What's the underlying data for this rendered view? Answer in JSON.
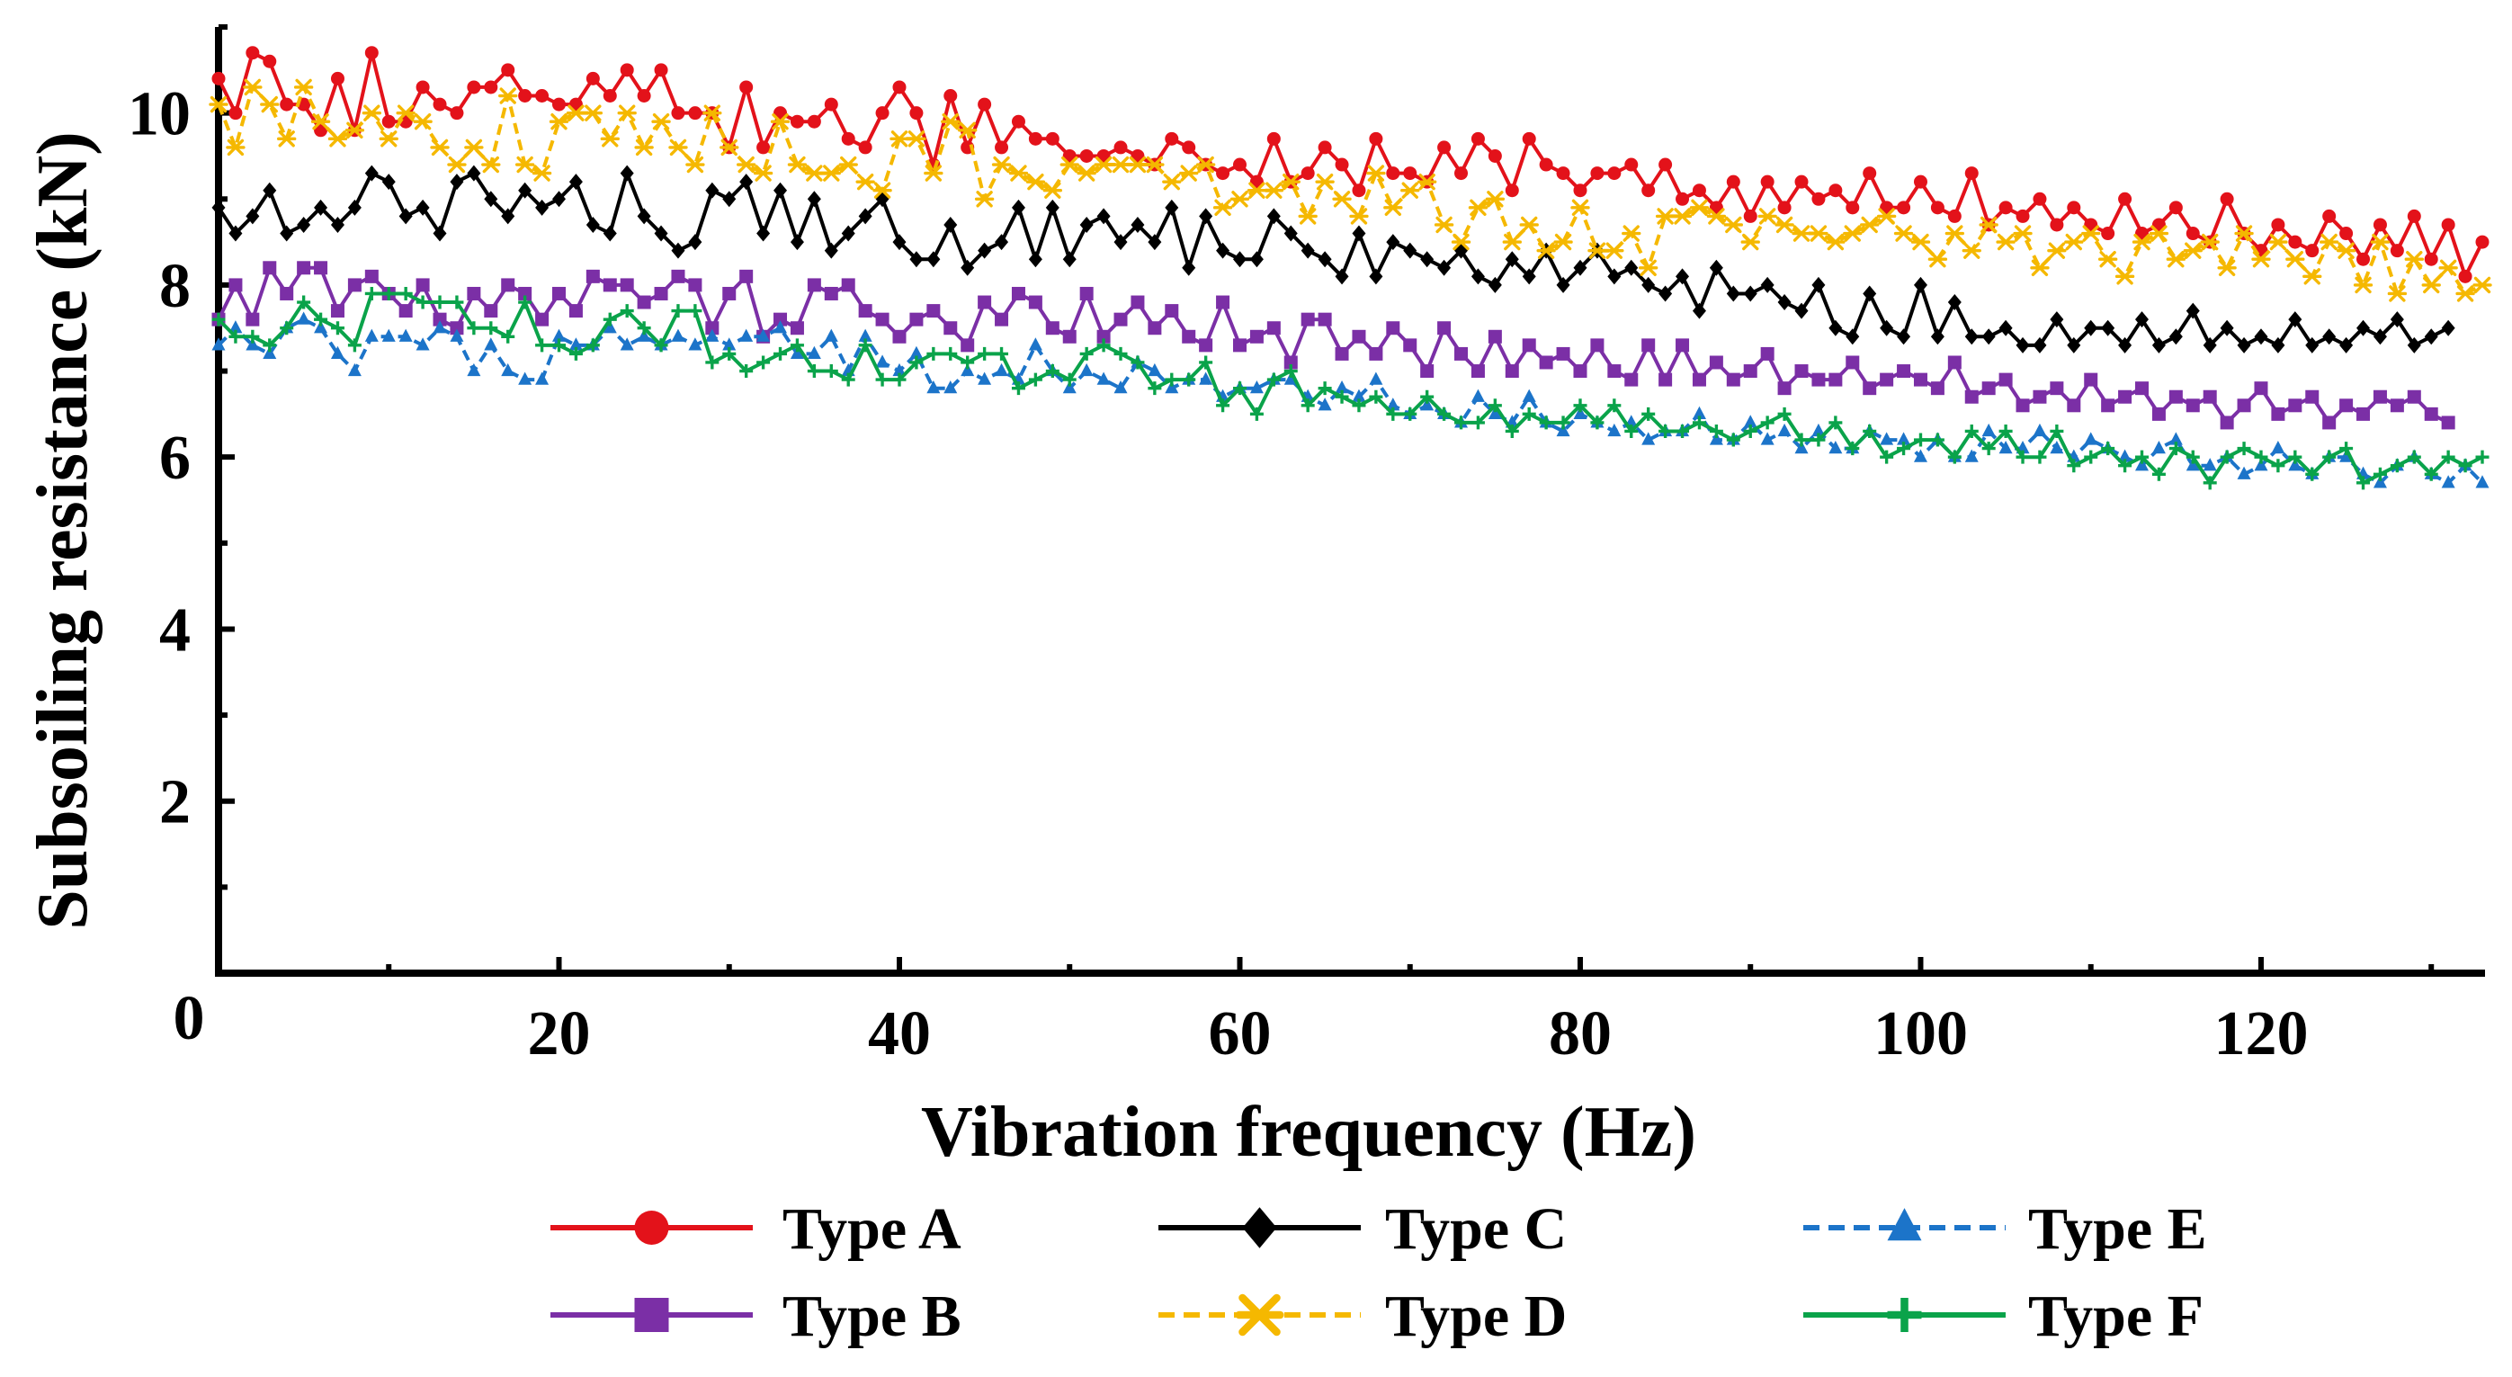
{
  "chart_data": {
    "type": "line",
    "title": "",
    "xlabel": "Vibration frequency (Hz)",
    "ylabel": "Subsoiling resistance (kN)",
    "xlim": [
      0,
      133
    ],
    "ylim": [
      0,
      11
    ],
    "xticks": [
      20,
      40,
      60,
      80,
      100,
      120
    ],
    "yticks": [
      2,
      4,
      6,
      8,
      10
    ],
    "origin_label": "0",
    "grid": false,
    "legend_position": "bottom",
    "x_start": 0,
    "x_step": 1,
    "series": [
      {
        "name": "Type A",
        "color": "#e3121a",
        "marker": "circle",
        "dash": "solid",
        "values": [
          10.4,
          10.0,
          10.7,
          10.6,
          10.1,
          10.1,
          9.8,
          10.4,
          9.8,
          10.7,
          9.9,
          9.9,
          10.3,
          10.1,
          10.0,
          10.3,
          10.3,
          10.5,
          10.2,
          10.2,
          10.1,
          10.1,
          10.4,
          10.2,
          10.5,
          10.2,
          10.5,
          10.0,
          10.0,
          10.0,
          9.6,
          10.3,
          9.6,
          10.0,
          9.9,
          9.9,
          10.1,
          9.7,
          9.6,
          10.0,
          10.3,
          10.0,
          9.4,
          10.2,
          9.6,
          10.1,
          9.6,
          9.9,
          9.7,
          9.7,
          9.5,
          9.5,
          9.5,
          9.6,
          9.5,
          9.4,
          9.7,
          9.6,
          9.4,
          9.3,
          9.4,
          9.2,
          9.7,
          9.2,
          9.3,
          9.6,
          9.4,
          9.1,
          9.7,
          9.3,
          9.3,
          9.2,
          9.6,
          9.3,
          9.7,
          9.5,
          9.1,
          9.7,
          9.4,
          9.3,
          9.1,
          9.3,
          9.3,
          9.4,
          9.1,
          9.4,
          9.0,
          9.1,
          8.9,
          9.2,
          8.8,
          9.2,
          8.9,
          9.2,
          9.0,
          9.1,
          8.9,
          9.3,
          8.9,
          8.9,
          9.2,
          8.9,
          8.8,
          9.3,
          8.7,
          8.9,
          8.8,
          9.0,
          8.7,
          8.9,
          8.7,
          8.6,
          9.0,
          8.6,
          8.7,
          8.9,
          8.6,
          8.5,
          9.0,
          8.6,
          8.4,
          8.7,
          8.5,
          8.4,
          8.8,
          8.6,
          8.3,
          8.7,
          8.4,
          8.8,
          8.3,
          8.7,
          8.1,
          8.5
        ]
      },
      {
        "name": "Type B",
        "color": "#7b2fa6",
        "marker": "square",
        "dash": "solid",
        "values": [
          7.6,
          8.0,
          7.6,
          8.2,
          7.9,
          8.2,
          8.2,
          7.7,
          8.0,
          8.1,
          7.9,
          7.7,
          8.0,
          7.6,
          7.5,
          7.9,
          7.7,
          8.0,
          7.9,
          7.6,
          7.9,
          7.7,
          8.1,
          8.0,
          8.0,
          7.8,
          7.9,
          8.1,
          8.0,
          7.5,
          7.9,
          8.1,
          7.4,
          7.6,
          7.5,
          8.0,
          7.9,
          8.0,
          7.7,
          7.6,
          7.4,
          7.6,
          7.7,
          7.5,
          7.3,
          7.8,
          7.6,
          7.9,
          7.8,
          7.5,
          7.4,
          7.9,
          7.4,
          7.6,
          7.8,
          7.5,
          7.7,
          7.4,
          7.3,
          7.8,
          7.3,
          7.4,
          7.5,
          7.1,
          7.6,
          7.6,
          7.2,
          7.4,
          7.2,
          7.5,
          7.3,
          7.0,
          7.5,
          7.2,
          7.0,
          7.4,
          7.0,
          7.3,
          7.1,
          7.2,
          7.0,
          7.3,
          7.0,
          6.9,
          7.3,
          6.9,
          7.3,
          6.9,
          7.1,
          6.9,
          7.0,
          7.2,
          6.8,
          7.0,
          6.9,
          6.9,
          7.1,
          6.8,
          6.9,
          7.0,
          6.9,
          6.8,
          7.1,
          6.7,
          6.8,
          6.9,
          6.6,
          6.7,
          6.8,
          6.6,
          6.9,
          6.6,
          6.7,
          6.8,
          6.5,
          6.7,
          6.6,
          6.7,
          6.4,
          6.6,
          6.8,
          6.5,
          6.6,
          6.7,
          6.4,
          6.6,
          6.5,
          6.7,
          6.6,
          6.7,
          6.5,
          6.4
        ]
      },
      {
        "name": "Type C",
        "color": "#000000",
        "marker": "diamond",
        "dash": "solid",
        "values": [
          8.9,
          8.6,
          8.8,
          9.1,
          8.6,
          8.7,
          8.9,
          8.7,
          8.9,
          9.3,
          9.2,
          8.8,
          8.9,
          8.6,
          9.2,
          9.3,
          9.0,
          8.8,
          9.1,
          8.9,
          9.0,
          9.2,
          8.7,
          8.6,
          9.3,
          8.8,
          8.6,
          8.4,
          8.5,
          9.1,
          9.0,
          9.2,
          8.6,
          9.1,
          8.5,
          9.0,
          8.4,
          8.6,
          8.8,
          9.0,
          8.5,
          8.3,
          8.3,
          8.7,
          8.2,
          8.4,
          8.5,
          8.9,
          8.3,
          8.9,
          8.3,
          8.7,
          8.8,
          8.5,
          8.7,
          8.5,
          8.9,
          8.2,
          8.8,
          8.4,
          8.3,
          8.3,
          8.8,
          8.6,
          8.4,
          8.3,
          8.1,
          8.6,
          8.1,
          8.5,
          8.4,
          8.3,
          8.2,
          8.4,
          8.1,
          8.0,
          8.3,
          8.1,
          8.4,
          8.0,
          8.2,
          8.4,
          8.1,
          8.2,
          8.0,
          7.9,
          8.1,
          7.7,
          8.2,
          7.9,
          7.9,
          8.0,
          7.8,
          7.7,
          8.0,
          7.5,
          7.4,
          7.9,
          7.5,
          7.4,
          8.0,
          7.4,
          7.8,
          7.4,
          7.4,
          7.5,
          7.3,
          7.3,
          7.6,
          7.3,
          7.5,
          7.5,
          7.3,
          7.6,
          7.3,
          7.4,
          7.7,
          7.3,
          7.5,
          7.3,
          7.4,
          7.3,
          7.6,
          7.3,
          7.4,
          7.3,
          7.5,
          7.4,
          7.6,
          7.3,
          7.4,
          7.5
        ]
      },
      {
        "name": "Type D",
        "color": "#f5b800",
        "marker": "asterisk",
        "dash": "dashed",
        "values": [
          10.1,
          9.6,
          10.3,
          10.1,
          9.7,
          10.3,
          9.9,
          9.7,
          9.8,
          10.0,
          9.7,
          10.0,
          9.9,
          9.6,
          9.4,
          9.6,
          9.4,
          10.2,
          9.4,
          9.3,
          9.9,
          10.0,
          10.0,
          9.7,
          10.0,
          9.6,
          9.9,
          9.6,
          9.4,
          10.0,
          9.6,
          9.4,
          9.3,
          9.9,
          9.4,
          9.3,
          9.3,
          9.4,
          9.2,
          9.1,
          9.7,
          9.7,
          9.3,
          9.9,
          9.8,
          9.0,
          9.4,
          9.3,
          9.2,
          9.1,
          9.4,
          9.3,
          9.4,
          9.4,
          9.4,
          9.4,
          9.2,
          9.3,
          9.4,
          8.9,
          9.0,
          9.1,
          9.1,
          9.2,
          8.8,
          9.2,
          9.0,
          8.8,
          9.3,
          8.9,
          9.1,
          9.2,
          8.7,
          8.5,
          8.9,
          9.0,
          8.5,
          8.7,
          8.4,
          8.5,
          8.9,
          8.4,
          8.4,
          8.6,
          8.2,
          8.8,
          8.8,
          8.9,
          8.8,
          8.7,
          8.5,
          8.8,
          8.7,
          8.6,
          8.6,
          8.5,
          8.6,
          8.7,
          8.8,
          8.6,
          8.5,
          8.3,
          8.6,
          8.4,
          8.7,
          8.5,
          8.6,
          8.2,
          8.4,
          8.5,
          8.6,
          8.3,
          8.1,
          8.5,
          8.6,
          8.3,
          8.4,
          8.5,
          8.2,
          8.6,
          8.3,
          8.5,
          8.3,
          8.1,
          8.5,
          8.4,
          8.0,
          8.5,
          7.9,
          8.3,
          8.0,
          8.2,
          7.9,
          8.0
        ]
      },
      {
        "name": "Type E",
        "color": "#1c74c9",
        "marker": "triangle",
        "dash": "dashed",
        "values": [
          7.3,
          7.5,
          7.3,
          7.2,
          7.5,
          7.6,
          7.5,
          7.2,
          7.0,
          7.4,
          7.4,
          7.4,
          7.3,
          7.5,
          7.4,
          7.0,
          7.3,
          7.0,
          6.9,
          6.9,
          7.4,
          7.3,
          7.3,
          7.5,
          7.3,
          7.4,
          7.3,
          7.4,
          7.3,
          7.4,
          7.3,
          7.4,
          7.4,
          7.5,
          7.2,
          7.2,
          7.4,
          7.0,
          7.4,
          7.1,
          7.0,
          7.2,
          6.8,
          6.8,
          7.0,
          6.9,
          7.0,
          6.9,
          7.3,
          7.0,
          6.8,
          7.0,
          6.9,
          6.8,
          7.1,
          7.0,
          6.8,
          6.9,
          6.9,
          6.7,
          6.8,
          6.8,
          6.9,
          6.9,
          6.7,
          6.6,
          6.8,
          6.7,
          6.9,
          6.6,
          6.5,
          6.6,
          6.5,
          6.4,
          6.7,
          6.5,
          6.4,
          6.7,
          6.4,
          6.3,
          6.5,
          6.4,
          6.3,
          6.4,
          6.2,
          6.3,
          6.3,
          6.5,
          6.2,
          6.2,
          6.4,
          6.2,
          6.3,
          6.1,
          6.3,
          6.1,
          6.1,
          6.3,
          6.2,
          6.2,
          6.0,
          6.2,
          6.0,
          6.0,
          6.3,
          6.1,
          6.1,
          6.3,
          6.1,
          6.0,
          6.2,
          6.1,
          6.0,
          5.9,
          6.1,
          6.2,
          5.9,
          5.9,
          6.0,
          5.8,
          5.9,
          6.1,
          5.9,
          5.8,
          6.0,
          6.0,
          5.8,
          5.7,
          5.9,
          6.0,
          5.8,
          5.7,
          5.9,
          5.7
        ]
      },
      {
        "name": "Type F",
        "color": "#0aa34a",
        "marker": "plus",
        "dash": "solid",
        "values": [
          7.6,
          7.4,
          7.4,
          7.3,
          7.5,
          7.8,
          7.6,
          7.5,
          7.3,
          7.9,
          7.9,
          7.9,
          7.8,
          7.8,
          7.8,
          7.5,
          7.5,
          7.4,
          7.8,
          7.3,
          7.3,
          7.2,
          7.3,
          7.6,
          7.7,
          7.5,
          7.3,
          7.7,
          7.7,
          7.1,
          7.2,
          7.0,
          7.1,
          7.2,
          7.3,
          7.0,
          7.0,
          6.9,
          7.3,
          6.9,
          6.9,
          7.1,
          7.2,
          7.2,
          7.1,
          7.2,
          7.2,
          6.8,
          6.9,
          7.0,
          6.9,
          7.2,
          7.3,
          7.2,
          7.1,
          6.8,
          6.9,
          6.9,
          7.1,
          6.6,
          6.8,
          6.5,
          6.9,
          7.0,
          6.6,
          6.8,
          6.7,
          6.6,
          6.7,
          6.5,
          6.5,
          6.7,
          6.5,
          6.4,
          6.4,
          6.6,
          6.3,
          6.5,
          6.4,
          6.4,
          6.6,
          6.4,
          6.6,
          6.3,
          6.5,
          6.3,
          6.3,
          6.4,
          6.3,
          6.2,
          6.3,
          6.4,
          6.5,
          6.2,
          6.2,
          6.4,
          6.1,
          6.3,
          6.0,
          6.1,
          6.2,
          6.2,
          6.0,
          6.3,
          6.1,
          6.3,
          6.0,
          6.0,
          6.3,
          5.9,
          6.0,
          6.1,
          5.9,
          6.0,
          5.8,
          6.1,
          6.0,
          5.7,
          6.0,
          6.1,
          6.0,
          5.9,
          6.0,
          5.8,
          6.0,
          6.1,
          5.7,
          5.8,
          5.9,
          6.0,
          5.8,
          6.0,
          5.9,
          6.0
        ]
      }
    ]
  }
}
